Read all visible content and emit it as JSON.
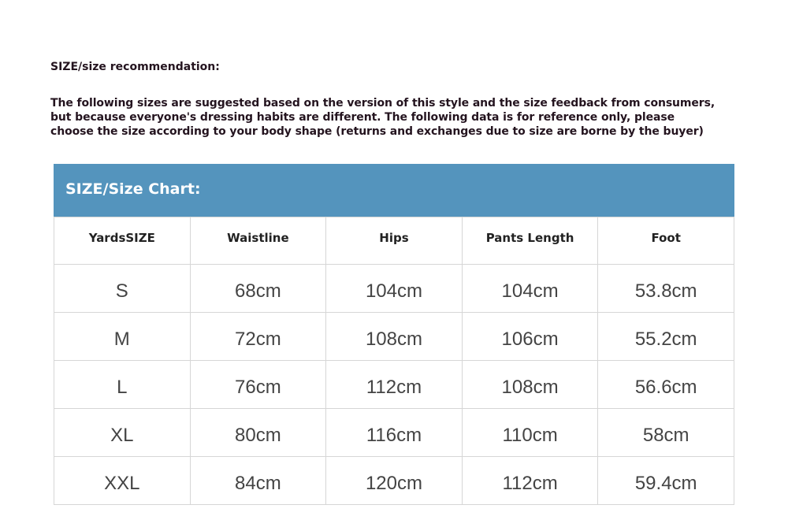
{
  "heading": "SIZE/size recommendation:",
  "intro_lines": [
    "The following sizes are suggested based on the version of this style and the size feedback from consumers,",
    "but because everyone's dressing habits are different. The following data is for reference only, please",
    "choose the size according to your body shape (returns and exchanges due to size are borne by the buyer)"
  ],
  "size_chart": {
    "title": "SIZE/Size Chart:",
    "header_color": "#5494bd",
    "columns": [
      "YardsSIZE",
      "Waistline",
      "Hips",
      "Pants Length",
      "Foot"
    ],
    "rows": [
      [
        "S",
        "68cm",
        "104cm",
        "104cm",
        "53.8cm"
      ],
      [
        "M",
        "72cm",
        "108cm",
        "106cm",
        "55.2cm"
      ],
      [
        "L",
        "76cm",
        "112cm",
        "108cm",
        "56.6cm"
      ],
      [
        "XL",
        "80cm",
        "116cm",
        "110cm",
        "58cm"
      ],
      [
        "XXL",
        "84cm",
        "120cm",
        "112cm",
        "59.4cm"
      ]
    ]
  }
}
